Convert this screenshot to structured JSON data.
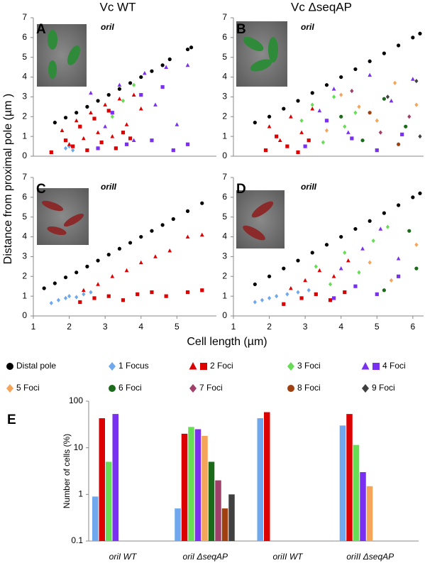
{
  "figure": {
    "ylabel": "Distance from proximal pole (µm )",
    "xlabel": "Cell length (µm)"
  },
  "legend": [
    {
      "label": "Distal pole",
      "markers": [
        {
          "shape": "circle",
          "color": "#000000"
        }
      ]
    },
    {
      "label": "1 Focus",
      "markers": [
        {
          "shape": "diamond",
          "color": "#6fa8ec"
        }
      ]
    },
    {
      "label": "2 Foci",
      "markers": [
        {
          "shape": "triangle",
          "color": "#dd0000"
        },
        {
          "shape": "square",
          "color": "#dd0000"
        }
      ]
    },
    {
      "label": "3 Foci",
      "markers": [
        {
          "shape": "diamond",
          "color": "#66dd55"
        }
      ]
    },
    {
      "label": "4 Foci",
      "markers": [
        {
          "shape": "triangle",
          "color": "#7a30f0"
        },
        {
          "shape": "square",
          "color": "#7a30f0"
        }
      ]
    },
    {
      "label": "5 Foci",
      "markers": [
        {
          "shape": "diamond",
          "color": "#f5a55a"
        }
      ]
    },
    {
      "label": "6 Foci",
      "markers": [
        {
          "shape": "circle",
          "color": "#1b6b1b"
        }
      ]
    },
    {
      "label": "7 Foci",
      "markers": [
        {
          "shape": "diamond",
          "color": "#a0406a"
        }
      ]
    },
    {
      "label": "8 Foci",
      "markers": [
        {
          "shape": "circle",
          "color": "#a04010"
        }
      ]
    },
    {
      "label": "9 Foci",
      "markers": [
        {
          "shape": "diamond",
          "color": "#404040"
        }
      ]
    }
  ],
  "chart_data": [
    {
      "type": "scatter",
      "column_title": "Vc WT",
      "panel_label": "A",
      "annotation": "oriI",
      "xlim": [
        1,
        6.1
      ],
      "ylim": [
        0,
        7
      ],
      "yticks": [
        0,
        1,
        2,
        3,
        4,
        5,
        6,
        7
      ],
      "series": [
        {
          "color": "#000000",
          "marker": "circle",
          "x": [
            1.6,
            1.9,
            2.2,
            2.5,
            2.8,
            3.1,
            3.4,
            3.7,
            4.0,
            4.3,
            4.6,
            4.8,
            5.3,
            5.4
          ],
          "y": [
            1.7,
            1.95,
            2.2,
            2.5,
            2.8,
            3.1,
            3.4,
            3.7,
            4.0,
            4.3,
            4.6,
            4.9,
            5.4,
            5.5
          ]
        },
        {
          "color": "#6fa8ec",
          "marker": "diamond",
          "x": [
            1.9,
            2.0,
            2.1
          ],
          "y": [
            0.4,
            0.5,
            0.3
          ]
        },
        {
          "color": "#dd0000",
          "marker": "triangle",
          "x": [
            1.8,
            2.0,
            2.2,
            2.4,
            2.6,
            2.8,
            3.0,
            3.2,
            3.4,
            3.6,
            3.8,
            4.0
          ],
          "y": [
            1.3,
            0.6,
            1.8,
            0.9,
            2.2,
            1.2,
            2.6,
            1.0,
            2.9,
            1.6,
            3.1,
            2.4
          ]
        },
        {
          "color": "#dd0000",
          "marker": "square",
          "x": [
            1.5,
            1.9,
            2.1,
            2.3,
            2.5,
            2.7,
            2.9,
            3.1,
            3.3,
            3.5,
            3.7
          ],
          "y": [
            0.2,
            0.8,
            0.5,
            1.5,
            0.3,
            1.9,
            0.7,
            2.3,
            0.4,
            1.2,
            0.9
          ]
        },
        {
          "color": "#66dd55",
          "marker": "diamond",
          "x": [
            3.2,
            3.5,
            3.8
          ],
          "y": [
            2.0,
            2.8,
            3.6
          ]
        },
        {
          "color": "#7a30f0",
          "marker": "triangle",
          "x": [
            2.6,
            3.0,
            3.4,
            3.8,
            4.1,
            4.4,
            4.7,
            5.0,
            5.3
          ],
          "y": [
            3.2,
            1.5,
            3.6,
            0.8,
            4.2,
            2.6,
            4.5,
            1.6,
            4.6
          ]
        },
        {
          "color": "#7a30f0",
          "marker": "square",
          "x": [
            2.8,
            3.2,
            3.6,
            4.0,
            4.3,
            4.6,
            4.9,
            5.3
          ],
          "y": [
            0.4,
            2.2,
            0.6,
            3.1,
            0.8,
            3.5,
            0.3,
            0.6
          ]
        }
      ]
    },
    {
      "type": "scatter",
      "column_title": "Vc ΔseqAP",
      "panel_label": "B",
      "annotation": "oriI",
      "xlim": [
        1,
        6.3
      ],
      "ylim": [
        0,
        7
      ],
      "yticks": [
        0,
        1,
        2,
        3,
        4,
        5,
        6,
        7
      ],
      "series": [
        {
          "color": "#000000",
          "marker": "circle",
          "x": [
            1.6,
            2.0,
            2.4,
            2.8,
            3.2,
            3.6,
            4.0,
            4.4,
            4.8,
            5.2,
            5.6,
            6.0,
            6.2
          ],
          "y": [
            1.7,
            2.0,
            2.4,
            2.8,
            3.2,
            3.6,
            4.0,
            4.4,
            4.8,
            5.2,
            5.6,
            6.0,
            6.2
          ]
        },
        {
          "color": "#dd0000",
          "marker": "triangle",
          "x": [
            2.0,
            2.3,
            2.6,
            2.9,
            3.2
          ],
          "y": [
            1.5,
            0.8,
            2.0,
            1.2,
            2.4
          ]
        },
        {
          "color": "#dd0000",
          "marker": "square",
          "x": [
            1.9,
            2.2,
            2.5,
            2.8,
            3.1
          ],
          "y": [
            0.3,
            1.0,
            0.5,
            0.2,
            0.8
          ]
        },
        {
          "color": "#66dd55",
          "marker": "diamond",
          "x": [
            2.9,
            3.2,
            3.5,
            3.8,
            4.1,
            4.4
          ],
          "y": [
            1.8,
            2.6,
            0.7,
            3.0,
            1.5,
            2.2
          ]
        },
        {
          "color": "#7a30f0",
          "marker": "triangle",
          "x": [
            3.4,
            3.8,
            4.2,
            4.8,
            5.4,
            6.0
          ],
          "y": [
            2.3,
            3.4,
            1.2,
            4.1,
            2.8,
            3.9
          ]
        },
        {
          "color": "#7a30f0",
          "marker": "square",
          "x": [
            3.0,
            3.6,
            4.3,
            5.0,
            5.7
          ],
          "y": [
            0.5,
            1.8,
            0.9,
            0.3,
            1.1
          ]
        },
        {
          "color": "#f5a55a",
          "marker": "diamond",
          "x": [
            3.6,
            4.0,
            4.5,
            5.0,
            5.5,
            6.1
          ],
          "y": [
            1.3,
            3.1,
            2.5,
            1.8,
            3.7,
            2.6
          ]
        },
        {
          "color": "#1b6b1b",
          "marker": "circle",
          "x": [
            4.0,
            4.6,
            5.2,
            5.8
          ],
          "y": [
            2.0,
            0.8,
            2.9,
            1.5
          ]
        },
        {
          "color": "#a0406a",
          "marker": "diamond",
          "x": [
            4.3,
            5.1,
            5.9
          ],
          "y": [
            3.3,
            1.2,
            2.0
          ]
        },
        {
          "color": "#a04010",
          "marker": "circle",
          "x": [
            4.8,
            5.6
          ],
          "y": [
            2.2,
            0.6
          ]
        },
        {
          "color": "#404040",
          "marker": "diamond",
          "x": [
            5.3,
            6.1,
            6.2
          ],
          "y": [
            3.0,
            3.8,
            1.0
          ]
        }
      ]
    },
    {
      "type": "scatter",
      "panel_label": "C",
      "annotation": "oriII",
      "xlim": [
        1,
        6.1
      ],
      "ylim": [
        0,
        7
      ],
      "yticks": [
        0,
        1,
        2,
        3,
        4,
        5,
        6,
        7
      ],
      "xticks": [
        1,
        2,
        3,
        4,
        5
      ],
      "series": [
        {
          "color": "#000000",
          "marker": "circle",
          "x": [
            1.3,
            1.6,
            1.9,
            2.2,
            2.5,
            2.8,
            3.1,
            3.4,
            3.7,
            4.0,
            4.3,
            4.6,
            4.9,
            5.3,
            5.7
          ],
          "y": [
            1.4,
            1.65,
            1.95,
            2.2,
            2.5,
            2.8,
            3.1,
            3.4,
            3.7,
            4.0,
            4.3,
            4.6,
            4.9,
            5.3,
            5.7
          ]
        },
        {
          "color": "#6fa8ec",
          "marker": "diamond",
          "x": [
            1.5,
            1.7,
            1.9,
            2.0,
            2.2,
            2.4,
            2.6
          ],
          "y": [
            0.65,
            0.8,
            0.9,
            1.0,
            0.95,
            1.1,
            1.2
          ]
        },
        {
          "color": "#dd0000",
          "marker": "triangle",
          "x": [
            2.4,
            2.8,
            3.2,
            3.6,
            4.0,
            4.4,
            4.8,
            5.3,
            5.7
          ],
          "y": [
            1.3,
            1.6,
            2.0,
            2.3,
            2.7,
            3.0,
            3.3,
            4.0,
            4.1
          ]
        },
        {
          "color": "#dd0000",
          "marker": "square",
          "x": [
            2.3,
            2.7,
            3.1,
            3.5,
            3.9,
            4.3,
            4.7,
            5.3,
            5.7
          ],
          "y": [
            0.7,
            0.9,
            1.0,
            0.8,
            1.1,
            1.2,
            1.0,
            1.2,
            1.3
          ]
        }
      ]
    },
    {
      "type": "scatter",
      "panel_label": "D",
      "annotation": "oriII",
      "xlim": [
        1,
        6.3
      ],
      "ylim": [
        0,
        7
      ],
      "yticks": [
        0,
        1,
        2,
        3,
        4,
        5,
        6,
        7
      ],
      "xticks": [
        1,
        2,
        3,
        4,
        5,
        6
      ],
      "series": [
        {
          "color": "#000000",
          "marker": "circle",
          "x": [
            1.6,
            2.0,
            2.4,
            2.8,
            3.2,
            3.6,
            4.0,
            4.4,
            4.8,
            5.2,
            5.6,
            6.0,
            6.2
          ],
          "y": [
            1.6,
            2.0,
            2.4,
            2.8,
            3.2,
            3.6,
            4.0,
            4.4,
            4.8,
            5.2,
            5.6,
            6.0,
            6.2
          ]
        },
        {
          "color": "#6fa8ec",
          "marker": "diamond",
          "x": [
            1.6,
            1.8,
            2.0,
            2.2,
            2.5,
            2.8,
            3.1
          ],
          "y": [
            0.7,
            0.8,
            0.9,
            1.0,
            1.1,
            1.2,
            1.3
          ]
        },
        {
          "color": "#dd0000",
          "marker": "triangle",
          "x": [
            2.6,
            3.0,
            3.4,
            3.8,
            4.2
          ],
          "y": [
            1.4,
            1.8,
            2.3,
            2.0,
            2.8
          ]
        },
        {
          "color": "#dd0000",
          "marker": "square",
          "x": [
            2.4,
            2.9,
            3.3,
            3.7,
            4.1
          ],
          "y": [
            0.6,
            0.9,
            1.1,
            0.8,
            1.2
          ]
        },
        {
          "color": "#66dd55",
          "marker": "diamond",
          "x": [
            3.3,
            3.7,
            4.1,
            4.5,
            4.9,
            5.3
          ],
          "y": [
            2.5,
            1.6,
            3.2,
            2.2,
            3.8,
            4.5
          ]
        },
        {
          "color": "#7a30f0",
          "marker": "triangle",
          "x": [
            4.0,
            4.6,
            5.1,
            5.6
          ],
          "y": [
            2.4,
            3.4,
            4.4,
            2.9
          ]
        },
        {
          "color": "#7a30f0",
          "marker": "square",
          "x": [
            3.8,
            4.4,
            5.0,
            5.6
          ],
          "y": [
            0.9,
            1.5,
            1.1,
            2.0
          ]
        },
        {
          "color": "#f5a55a",
          "marker": "diamond",
          "x": [
            4.8,
            5.4,
            6.1
          ],
          "y": [
            2.7,
            1.8,
            3.6
          ]
        },
        {
          "color": "#1b6b1b",
          "marker": "circle",
          "x": [
            5.2,
            5.9,
            6.1
          ],
          "y": [
            1.3,
            4.3,
            2.4
          ]
        }
      ]
    },
    {
      "type": "bar",
      "panel_label": "E",
      "ylabel": "Number of cells (%)",
      "log": true,
      "ylim": [
        0.1,
        100
      ],
      "yticks": [
        0.1,
        1,
        10,
        100
      ],
      "categories": [
        "oriI WT",
        "oriI ΔseqAP",
        "oriII WT",
        "oriII ΔseqAP"
      ],
      "series": [
        {
          "color": "#6fa8ec",
          "values": [
            0.9,
            0.5,
            43,
            30
          ]
        },
        {
          "color": "#dd0000",
          "values": [
            43,
            20,
            58,
            53
          ]
        },
        {
          "color": "#66dd55",
          "values": [
            5,
            28,
            null,
            11.5
          ]
        },
        {
          "color": "#7a30f0",
          "values": [
            53,
            25,
            null,
            3
          ]
        },
        {
          "color": "#f5a55a",
          "values": [
            null,
            18,
            null,
            1.5
          ]
        },
        {
          "color": "#1b6b1b",
          "values": [
            null,
            5,
            null,
            null
          ]
        },
        {
          "color": "#a0406a",
          "values": [
            null,
            2,
            null,
            null
          ]
        },
        {
          "color": "#a04010",
          "values": [
            null,
            0.5,
            null,
            null
          ]
        },
        {
          "color": "#404040",
          "values": [
            null,
            1,
            null,
            null
          ]
        }
      ]
    }
  ]
}
